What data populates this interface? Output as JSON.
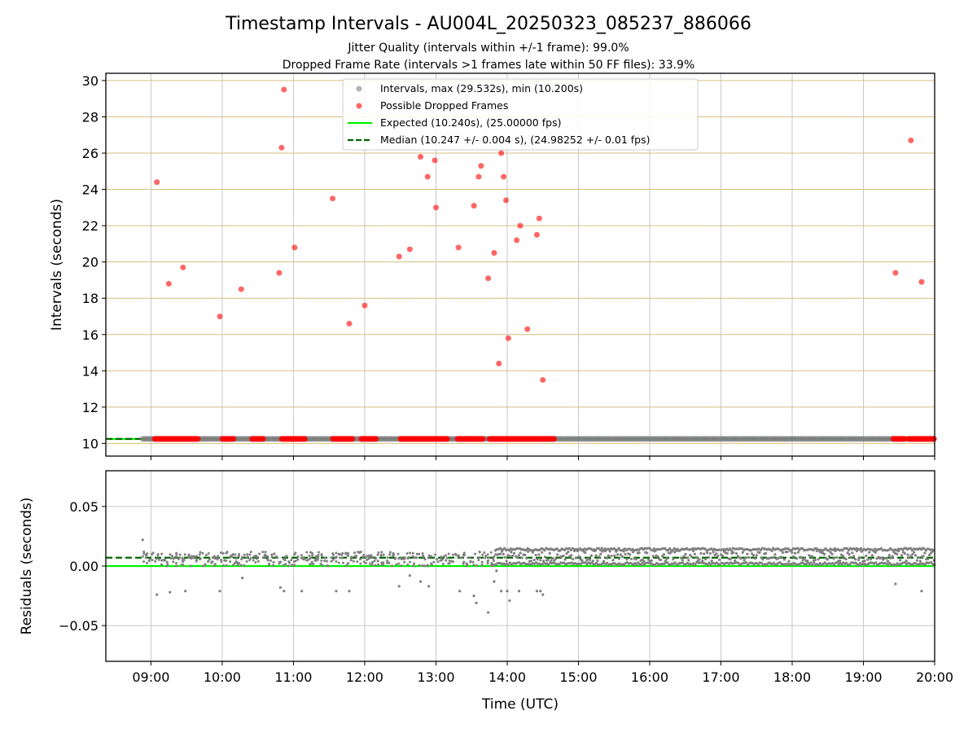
{
  "title": "Timestamp Intervals - AU004L_20250323_085237_886066",
  "subtitle1": "Jitter Quality (intervals within +/-1 frame): 99.0%",
  "subtitle2": "Dropped Frame Rate (intervals >1 frames late within 50 FF files): 33.9%",
  "colors": {
    "interval_points": "#808080",
    "dropped_points": "#ff0000",
    "expected_line": "#00ee00",
    "median_line": "#006400",
    "upper_grid": "#d4c080",
    "lower_grid": "#c8c8c8"
  },
  "chart_data": [
    {
      "type": "scatter",
      "panel": "intervals",
      "xlabel": "",
      "ylabel": "Intervals (seconds)",
      "x_ticks": [
        "09:00",
        "10:00",
        "11:00",
        "12:00",
        "13:00",
        "14:00",
        "15:00",
        "16:00",
        "17:00",
        "18:00",
        "19:00",
        "20:00"
      ],
      "xlim": [
        "08:22",
        "20:00"
      ],
      "ylim": [
        9.3,
        30.4
      ],
      "y_ticks": [
        10,
        12,
        14,
        16,
        18,
        20,
        22,
        24,
        26,
        28,
        30
      ],
      "grid": true,
      "legend_placement": "upper center",
      "legend": [
        "Intervals, max (29.532s), min (10.200s)",
        "Possible Dropped Frames",
        "Expected (10.240s), (25.00000 fps)",
        "Median (10.247 +/- 0.004 s), (24.98252 +/- 0.01 fps)"
      ],
      "series": [
        {
          "name": "Intervals, max (29.532s), min (10.200s)",
          "kind": "points",
          "x_range": [
            "08:53",
            "20:00"
          ],
          "y": 10.25
        },
        {
          "name": "Possible Dropped Frames",
          "kind": "points",
          "points": [
            [
              "09:05",
              24.4
            ],
            [
              "09:15",
              18.8
            ],
            [
              "09:27",
              19.7
            ],
            [
              "09:58",
              17.0
            ],
            [
              "10:16",
              18.5
            ],
            [
              "10:48",
              19.4
            ],
            [
              "10:50",
              26.3
            ],
            [
              "10:52",
              29.5
            ],
            [
              "11:01",
              20.8
            ],
            [
              "11:33",
              23.5
            ],
            [
              "11:47",
              16.6
            ],
            [
              "12:00",
              17.6
            ],
            [
              "12:29",
              20.3
            ],
            [
              "12:38",
              20.7
            ],
            [
              "12:47",
              25.8
            ],
            [
              "12:53",
              24.7
            ],
            [
              "12:59",
              25.6
            ],
            [
              "13:00",
              23.0
            ],
            [
              "13:19",
              20.8
            ],
            [
              "13:32",
              23.1
            ],
            [
              "13:36",
              24.7
            ],
            [
              "13:38",
              25.3
            ],
            [
              "13:44",
              19.1
            ],
            [
              "13:49",
              20.5
            ],
            [
              "13:53",
              14.4
            ],
            [
              "13:55",
              26.0
            ],
            [
              "13:57",
              24.7
            ],
            [
              "13:59",
              23.4
            ],
            [
              "14:01",
              15.8
            ],
            [
              "14:08",
              21.2
            ],
            [
              "14:11",
              22.0
            ],
            [
              "14:17",
              16.3
            ],
            [
              "14:25",
              21.5
            ],
            [
              "14:27",
              22.4
            ],
            [
              "14:30",
              13.5
            ],
            [
              "19:27",
              19.4
            ],
            [
              "19:40",
              26.7
            ],
            [
              "19:49",
              18.9
            ]
          ],
          "baseline_clusters": [
            [
              "09:03",
              "09:40"
            ],
            [
              "10:00",
              "10:10"
            ],
            [
              "10:25",
              "10:35"
            ],
            [
              "10:50",
              "11:10"
            ],
            [
              "11:33",
              "11:50"
            ],
            [
              "11:57",
              "12:10"
            ],
            [
              "12:30",
              "13:10"
            ],
            [
              "13:18",
              "13:40"
            ],
            [
              "13:45",
              "14:40"
            ],
            [
              "19:25",
              "19:35"
            ],
            [
              "19:38",
              "20:00"
            ]
          ],
          "baseline_y": 10.25
        },
        {
          "name": "Expected (10.240s), (25.00000 fps)",
          "kind": "hline",
          "y": 10.24
        },
        {
          "name": "Median (10.247 +/- 0.004 s), (24.98252 +/- 0.01 fps)",
          "kind": "hline",
          "y": 10.247
        }
      ]
    },
    {
      "type": "scatter",
      "panel": "residuals",
      "xlabel": "Time (UTC)",
      "ylabel": "Residuals (seconds)",
      "x_ticks": [
        "09:00",
        "10:00",
        "11:00",
        "12:00",
        "13:00",
        "14:00",
        "15:00",
        "16:00",
        "17:00",
        "18:00",
        "19:00",
        "20:00"
      ],
      "xlim": [
        "08:22",
        "20:00"
      ],
      "ylim": [
        -0.08,
        0.08
      ],
      "y_ticks": [
        {
          "value": 0.05,
          "label": "0.05"
        },
        {
          "value": 0.0,
          "label": "0.00"
        },
        {
          "value": -0.05,
          "label": "−0.05"
        }
      ],
      "grid": true,
      "series": [
        {
          "name": "Residuals",
          "kind": "points",
          "sparse_range": [
            "08:53",
            "13:50"
          ],
          "dense_range": [
            "13:50",
            "20:00"
          ],
          "dense_upper": 0.015,
          "outliers": [
            [
              "08:53",
              0.022
            ],
            [
              "09:05",
              -0.024
            ],
            [
              "09:16",
              -0.022
            ],
            [
              "09:29",
              -0.021
            ],
            [
              "09:58",
              -0.021
            ],
            [
              "10:17",
              -0.01
            ],
            [
              "10:49",
              -0.018
            ],
            [
              "10:52",
              -0.021
            ],
            [
              "11:07",
              -0.021
            ],
            [
              "11:36",
              -0.021
            ],
            [
              "11:47",
              -0.021
            ],
            [
              "12:29",
              -0.017
            ],
            [
              "12:38",
              -0.008
            ],
            [
              "12:47",
              -0.013
            ],
            [
              "12:54",
              -0.017
            ],
            [
              "13:20",
              -0.021
            ],
            [
              "13:32",
              -0.025
            ],
            [
              "13:34",
              -0.031
            ],
            [
              "13:44",
              -0.039
            ],
            [
              "13:49",
              -0.013
            ],
            [
              "13:51",
              -0.004
            ],
            [
              "13:55",
              -0.021
            ],
            [
              "14:00",
              -0.021
            ],
            [
              "14:02",
              -0.029
            ],
            [
              "14:10",
              -0.021
            ],
            [
              "14:25",
              -0.021
            ],
            [
              "14:28",
              -0.021
            ],
            [
              "14:30",
              -0.024
            ],
            [
              "19:27",
              -0.015
            ],
            [
              "19:49",
              -0.021
            ]
          ]
        },
        {
          "name": "Expected",
          "kind": "hline",
          "y": 0.0
        },
        {
          "name": "Median",
          "kind": "hline",
          "y": 0.007
        }
      ]
    }
  ]
}
